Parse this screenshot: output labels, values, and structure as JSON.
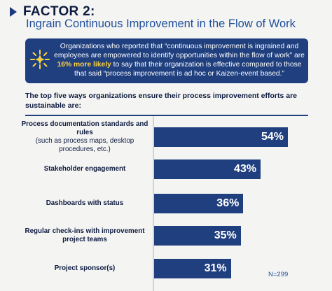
{
  "header": {
    "factor_label": "FACTOR 2:",
    "subtitle": "Ingrain Continuous Improvement in the Flow of Work"
  },
  "callout": {
    "icon": "sun-burst-icon",
    "text_before": "Organizations who reported that “continuous improvement is ingrained and employees are empowered to identify opportunities within the flow of work” are ",
    "highlight": "16% more likely",
    "text_after": " to say that their organization is effective compared to those that said “process improvement is ad hoc or Kaizen-event based.”",
    "highlight_color": "#ffd23f",
    "bg_color": "#1f3f7e"
  },
  "intro": "The top five ways organizations ensure their process improvement efforts are sustainable are:",
  "chart_data": {
    "type": "bar",
    "orientation": "horizontal",
    "categories": [
      "Process documentation standards and rules (such as process maps, desktop procedures, etc.)",
      "Stakeholder engagement",
      "Dashboards with status",
      "Regular check-ins with improvement project teams",
      "Project sponsor(s)"
    ],
    "category_labels": [
      {
        "main": "Process documentation standards and rules",
        "sub": "(such as process maps, desktop procedures, etc.)"
      },
      {
        "main": "Stakeholder engagement",
        "sub": ""
      },
      {
        "main": "Dashboards with status",
        "sub": ""
      },
      {
        "main": "Regular check-ins with improvement project teams",
        "sub": ""
      },
      {
        "main": "Project sponsor(s)",
        "sub": ""
      }
    ],
    "values": [
      54,
      43,
      36,
      35,
      31
    ],
    "value_labels": [
      "54%",
      "43%",
      "36%",
      "35%",
      "31%"
    ],
    "unit": "%",
    "bar_color": "#1f3f7e",
    "xlim": [
      0,
      60
    ],
    "grid": false,
    "legend": "none",
    "note": "N=299"
  }
}
